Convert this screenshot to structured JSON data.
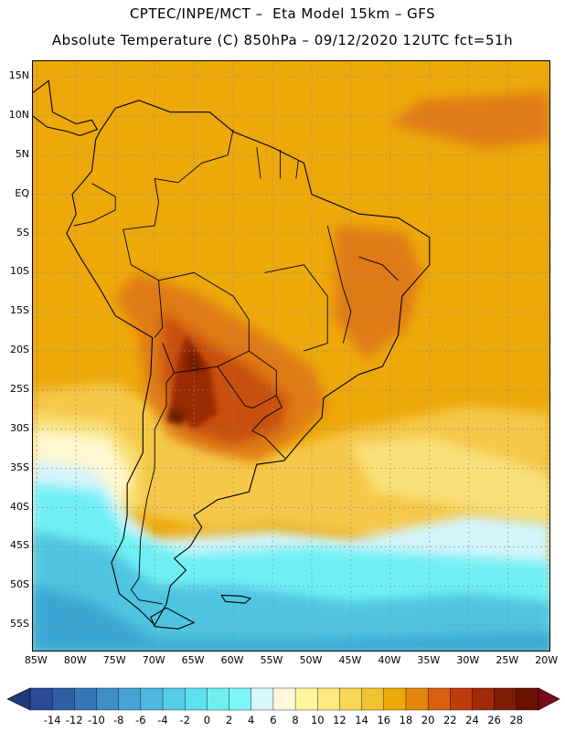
{
  "header": {
    "line1": "CPTEC/INPE/MCT –  Eta Model 15km – GFS",
    "line2": "Absolute Temperature (C) 850hPa – 09/12/2020 12UTC fct=51h"
  },
  "map": {
    "lat_ticks": [
      {
        "label": "15N",
        "lat": 15
      },
      {
        "label": "10N",
        "lat": 10
      },
      {
        "label": "5N",
        "lat": 5
      },
      {
        "label": "EQ",
        "lat": 0
      },
      {
        "label": "5S",
        "lat": -5
      },
      {
        "label": "10S",
        "lat": -10
      },
      {
        "label": "15S",
        "lat": -15
      },
      {
        "label": "20S",
        "lat": -20
      },
      {
        "label": "25S",
        "lat": -25
      },
      {
        "label": "30S",
        "lat": -30
      },
      {
        "label": "35S",
        "lat": -35
      },
      {
        "label": "40S",
        "lat": -40
      },
      {
        "label": "45S",
        "lat": -45
      },
      {
        "label": "50S",
        "lat": -50
      },
      {
        "label": "55S",
        "lat": -55
      }
    ],
    "lon_ticks": [
      {
        "label": "85W",
        "lon": -85
      },
      {
        "label": "80W",
        "lon": -80
      },
      {
        "label": "75W",
        "lon": -75
      },
      {
        "label": "70W",
        "lon": -70
      },
      {
        "label": "65W",
        "lon": -65
      },
      {
        "label": "60W",
        "lon": -60
      },
      {
        "label": "55W",
        "lon": -55
      },
      {
        "label": "50W",
        "lon": -50
      },
      {
        "label": "45W",
        "lon": -45
      },
      {
        "label": "40W",
        "lon": -40
      },
      {
        "label": "35W",
        "lon": -35
      },
      {
        "label": "30W",
        "lon": -30
      },
      {
        "label": "25W",
        "lon": -25
      },
      {
        "label": "20W",
        "lon": -20
      }
    ],
    "lon_range": [
      -85.5,
      -19.5
    ],
    "lat_range": [
      -58.5,
      17
    ],
    "colors": {
      "ocean_warm": "#eda80a",
      "land_base": "#eca009",
      "hot_1": "#e07a13",
      "hot_2": "#c84f10",
      "hot_3": "#9a2c06",
      "hot_4": "#6e1a05",
      "mild_1": "#f5c84a",
      "mild_2": "#f9e07a",
      "mild_3": "#fff7d0",
      "cold_1": "#d3f4fb",
      "cold_2": "#6ff0f5",
      "cold_3": "#5ce0ee",
      "cold_4": "#4fc4e0",
      "cold_5": "#3aa6d3",
      "cold_6": "#2f86c3",
      "coast": "#000000",
      "grid": "#8a8a8a"
    }
  },
  "colorbar": {
    "labels": [
      "-14",
      "-12",
      "-10",
      "-8",
      "-6",
      "-4",
      "-2",
      "0",
      "2",
      "4",
      "6",
      "8",
      "10",
      "12",
      "14",
      "16",
      "18",
      "20",
      "22",
      "24",
      "26",
      "28"
    ],
    "colors": [
      "#2a4b93",
      "#2e5fa5",
      "#3776b5",
      "#3f8ec6",
      "#47a3d3",
      "#4fb8df",
      "#56cde8",
      "#5de0ef",
      "#6fefef",
      "#7df7f7",
      "#d8f6fb",
      "#fff8da",
      "#fff59f",
      "#fde97f",
      "#f9d758",
      "#f2c233",
      "#eda80a",
      "#e3870d",
      "#d75f0f",
      "#bd3d0c",
      "#a02a07",
      "#7f1c05",
      "#6a1104"
    ],
    "end_left": "#1e3a7a",
    "end_right": "#7b0a1b"
  }
}
